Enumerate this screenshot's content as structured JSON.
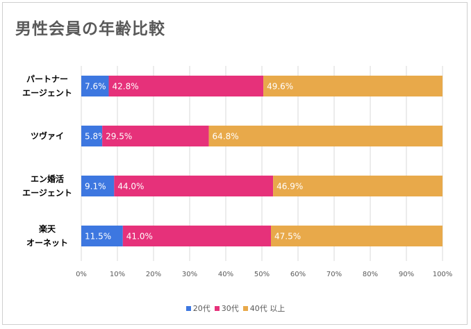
{
  "chart_data": {
    "type": "bar",
    "orientation": "horizontal",
    "stacked": "percent",
    "title": "男性会員の年齢比較",
    "categories": [
      "パートナー\nエージェント",
      "ツヴァイ",
      "エン婚活\nエージェント",
      "楽天\nオーネット"
    ],
    "series": [
      {
        "name": "20代",
        "color": "#3d77e0",
        "values": [
          7.6,
          5.8,
          9.1,
          11.5
        ],
        "labels": [
          "7.6%",
          "5.8%",
          "9.1%",
          "11.5%"
        ]
      },
      {
        "name": "30代",
        "color": "#e6317a",
        "values": [
          42.8,
          29.5,
          44.0,
          41.0
        ],
        "labels": [
          "42.8%",
          "29.5%",
          "44.0%",
          "41.0%"
        ]
      },
      {
        "name": "40代 以上",
        "color": "#e8a94a",
        "values": [
          49.6,
          64.8,
          46.9,
          47.5
        ],
        "labels": [
          "49.6%",
          "64.8%",
          "46.9%",
          "47.5%"
        ]
      }
    ],
    "xlim": [
      0,
      100
    ],
    "xticks": [
      "0%",
      "10%",
      "20%",
      "30%",
      "40%",
      "50%",
      "60%",
      "70%",
      "80%",
      "90%",
      "100%"
    ],
    "grid": true,
    "legend_position": "bottom"
  }
}
